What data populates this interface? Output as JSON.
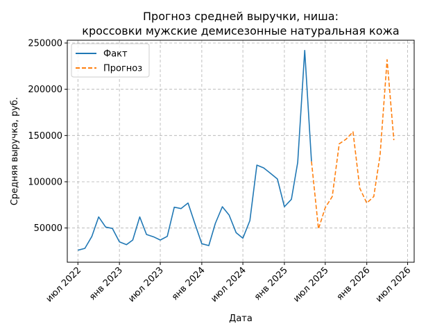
{
  "chart_data": {
    "type": "line",
    "title_line1": "Прогноз средней выручки, ниша:",
    "title_line2": "кроссовки мужские демисезонные натуральная кожа",
    "xlabel": "Дата",
    "ylabel": "Средняя выручка, руб.",
    "ylim": [
      13000,
      253000
    ],
    "xlim": [
      "2022-05-15",
      "2026-07-30"
    ],
    "grid": true,
    "grid_color": "#b0b0b0",
    "legend_position": "top-left",
    "x_ticks": [
      {
        "date": "2022-07-01",
        "label": "июл 2022"
      },
      {
        "date": "2023-01-01",
        "label": "янв 2023"
      },
      {
        "date": "2023-07-01",
        "label": "июл 2023"
      },
      {
        "date": "2024-01-01",
        "label": "янв 2024"
      },
      {
        "date": "2024-07-01",
        "label": "июл 2024"
      },
      {
        "date": "2025-01-01",
        "label": "янв 2025"
      },
      {
        "date": "2025-07-01",
        "label": "июл 2025"
      },
      {
        "date": "2026-01-01",
        "label": "янв 2026"
      },
      {
        "date": "2026-07-01",
        "label": "июл 2026"
      }
    ],
    "y_ticks": [
      {
        "value": 50000,
        "label": "50000"
      },
      {
        "value": 100000,
        "label": "100000"
      },
      {
        "value": 150000,
        "label": "150000"
      },
      {
        "value": 200000,
        "label": "200000"
      },
      {
        "value": 250000,
        "label": "250000"
      }
    ],
    "series": [
      {
        "name": "Факт",
        "color": "#1f77b4",
        "dash": "solid",
        "points": [
          [
            "2022-07-01",
            26000
          ],
          [
            "2022-08-01",
            28000
          ],
          [
            "2022-09-01",
            41000
          ],
          [
            "2022-10-01",
            62000
          ],
          [
            "2022-11-01",
            51000
          ],
          [
            "2022-12-01",
            49500
          ],
          [
            "2023-01-01",
            35000
          ],
          [
            "2023-02-01",
            32000
          ],
          [
            "2023-03-01",
            37000
          ],
          [
            "2023-04-01",
            62000
          ],
          [
            "2023-05-01",
            43000
          ],
          [
            "2023-06-01",
            40500
          ],
          [
            "2023-07-01",
            37000
          ],
          [
            "2023-08-01",
            41000
          ],
          [
            "2023-09-01",
            72500
          ],
          [
            "2023-10-01",
            71000
          ],
          [
            "2023-11-01",
            77000
          ],
          [
            "2023-12-01",
            55000
          ],
          [
            "2024-01-01",
            33000
          ],
          [
            "2024-02-01",
            31000
          ],
          [
            "2024-03-01",
            55000
          ],
          [
            "2024-04-01",
            73000
          ],
          [
            "2024-05-01",
            64000
          ],
          [
            "2024-06-01",
            45000
          ],
          [
            "2024-07-01",
            39000
          ],
          [
            "2024-08-01",
            58000
          ],
          [
            "2024-09-01",
            118000
          ],
          [
            "2024-10-01",
            115000
          ],
          [
            "2024-11-01",
            109000
          ],
          [
            "2024-12-01",
            103000
          ],
          [
            "2025-01-01",
            73000
          ],
          [
            "2025-02-01",
            81000
          ],
          [
            "2025-03-01",
            121000
          ],
          [
            "2025-04-01",
            242000
          ],
          [
            "2025-05-01",
            122000
          ]
        ]
      },
      {
        "name": "Прогноз",
        "color": "#ff7f0e",
        "dash": "dashed",
        "points": [
          [
            "2025-05-01",
            122000
          ],
          [
            "2025-06-01",
            49000
          ],
          [
            "2025-07-01",
            72000
          ],
          [
            "2025-08-01",
            84000
          ],
          [
            "2025-09-01",
            141000
          ],
          [
            "2025-10-01",
            146000
          ],
          [
            "2025-11-01",
            154000
          ],
          [
            "2025-12-01",
            93000
          ],
          [
            "2026-01-01",
            77000
          ],
          [
            "2026-02-01",
            84000
          ],
          [
            "2026-03-01",
            129000
          ],
          [
            "2026-04-01",
            232000
          ],
          [
            "2026-05-01",
            145000
          ]
        ]
      }
    ]
  }
}
